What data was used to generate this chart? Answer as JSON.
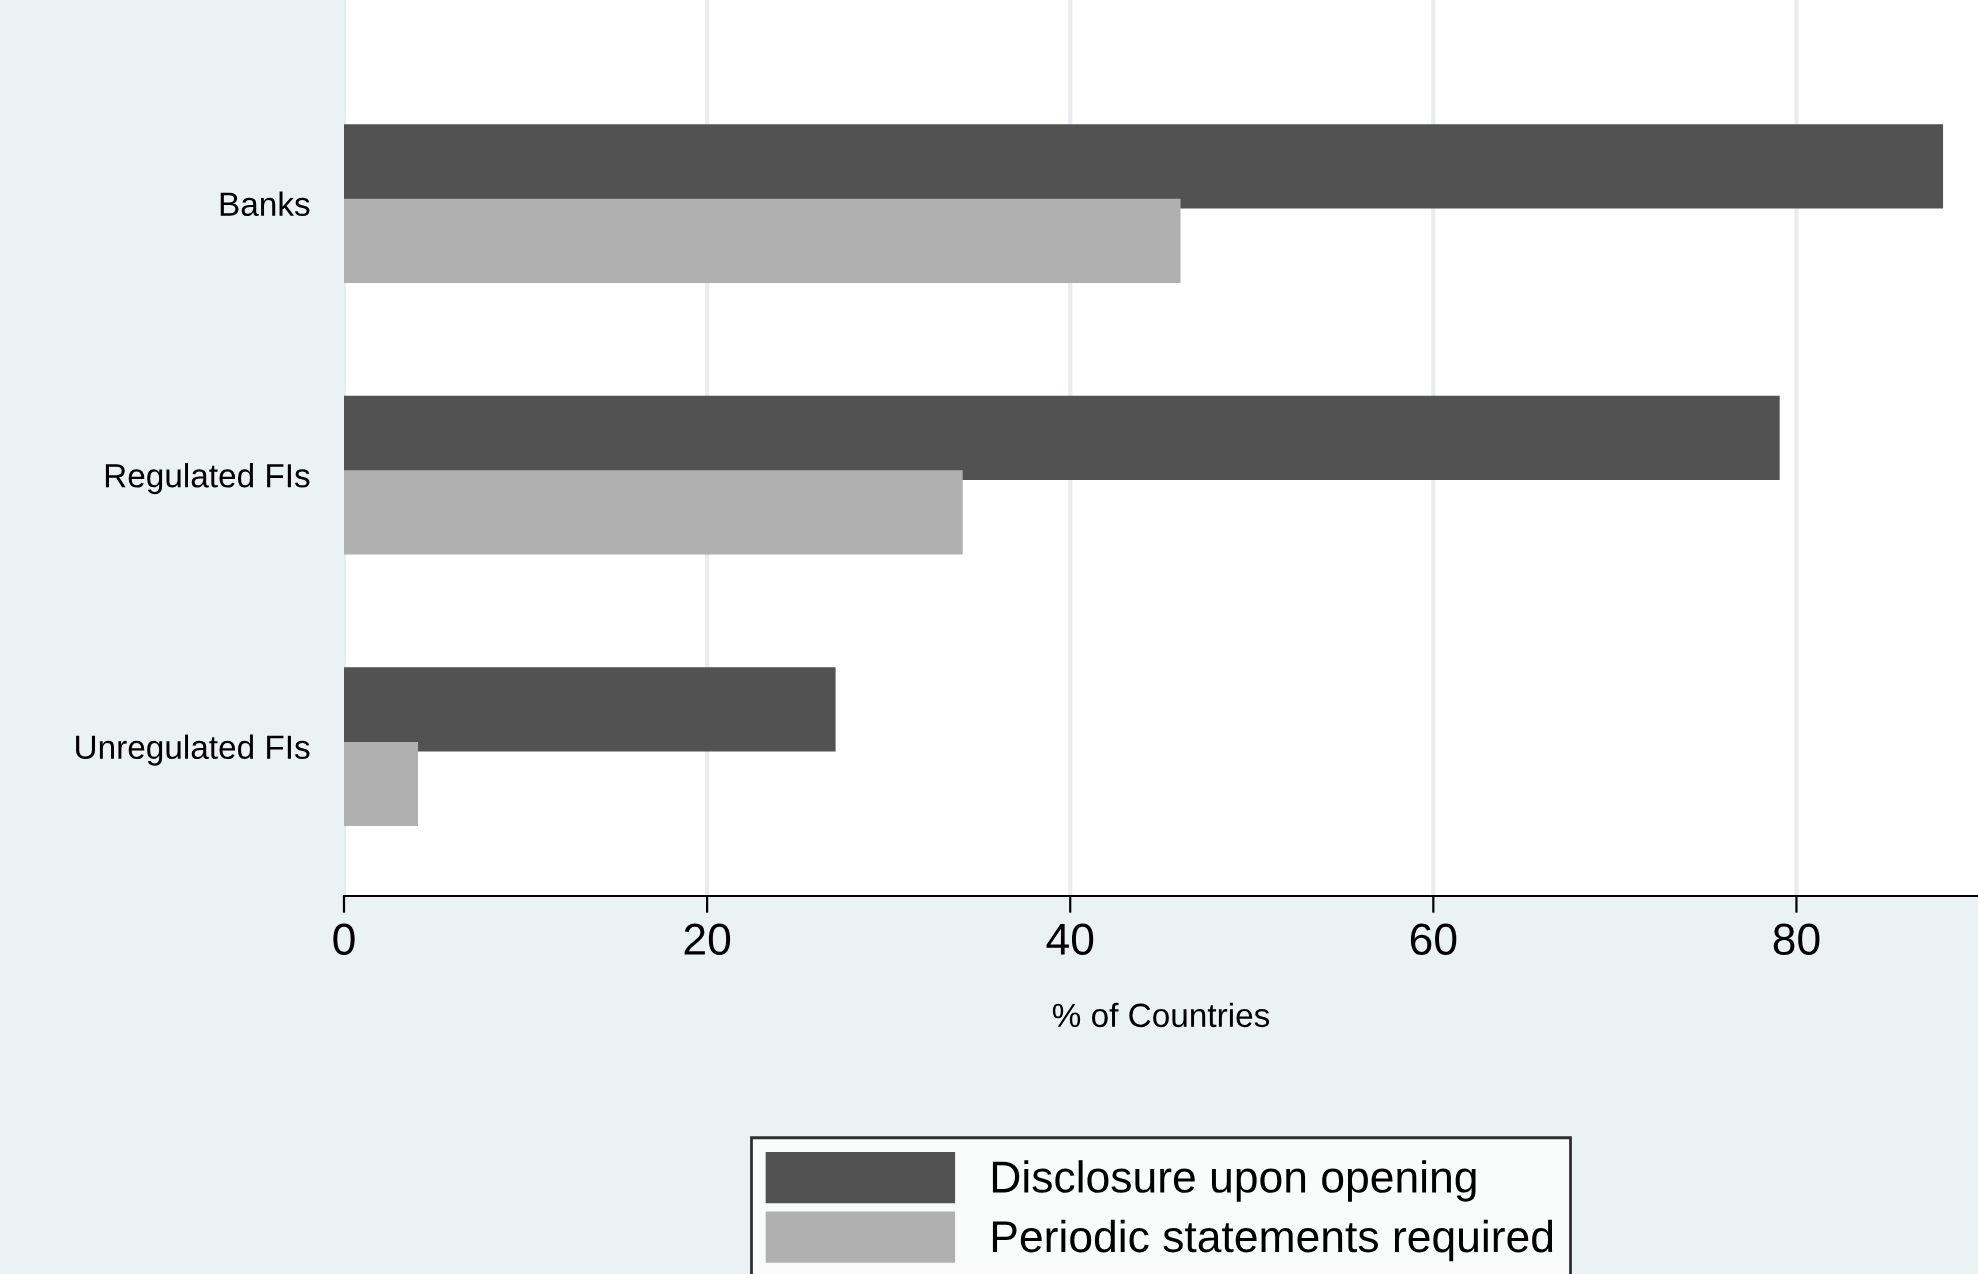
{
  "chart_data": {
    "type": "bar",
    "orientation": "horizontal",
    "categories": [
      "Banks",
      "Regulated FIs",
      "Unregulated FIs"
    ],
    "series": [
      {
        "name": "Disclosure upon opening",
        "color": "#525252",
        "values": [
          88,
          79,
          27
        ]
      },
      {
        "name": "Periodic statements required",
        "color": "#b0b0b0",
        "values": [
          46,
          34,
          4
        ]
      }
    ],
    "xlabel": "% of Countries",
    "xlim": [
      0,
      90
    ],
    "xticks": [
      0,
      20,
      40,
      60,
      80
    ],
    "grid": "x",
    "legend": "bottom"
  }
}
